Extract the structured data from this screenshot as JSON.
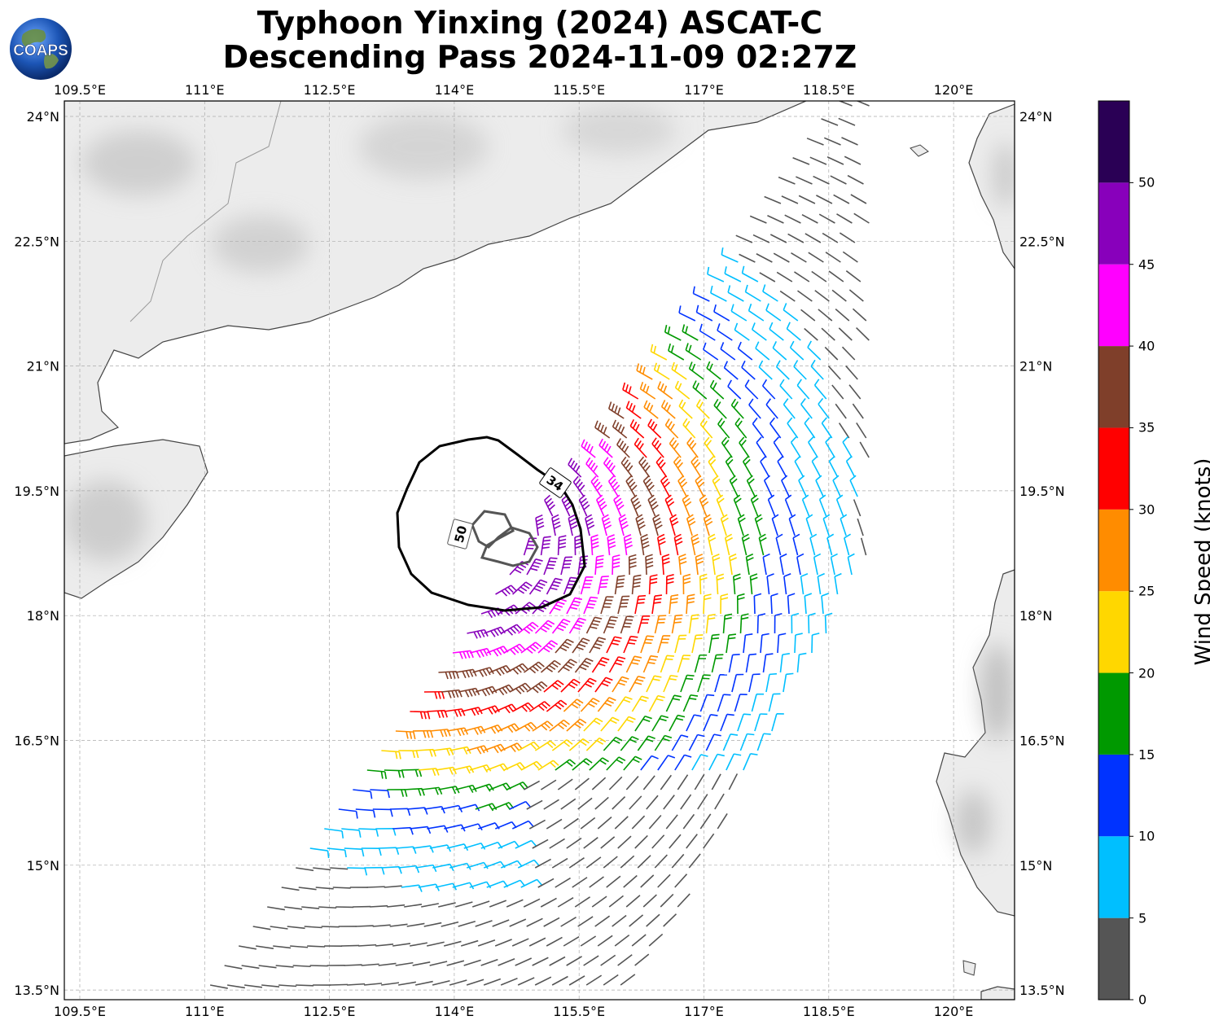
{
  "header": {
    "title_line1": "Typhoon Yinxing (2024) ASCAT-C",
    "title_line2": "Descending Pass 2024-11-09 02:27Z",
    "logo_text": "COAPS"
  },
  "map": {
    "lon_ticks": [
      "109.5°E",
      "111°E",
      "112.5°E",
      "114°E",
      "115.5°E",
      "117°E",
      "118.5°E",
      "120°E"
    ],
    "lat_ticks": [
      "24°N",
      "22.5°N",
      "21°N",
      "19.5°N",
      "18°N",
      "16.5°N",
      "15°N",
      "13.5°N"
    ],
    "lon_values": [
      109.5,
      111,
      112.5,
      114,
      115.5,
      117,
      118.5,
      120
    ],
    "lat_values": [
      24,
      22.5,
      21,
      19.5,
      18,
      16.5,
      15,
      13.5
    ],
    "contours": [
      {
        "label": "34",
        "color": "#000000"
      },
      {
        "label": "50",
        "color": "#555555"
      }
    ],
    "storm_center": {
      "lon": 114.35,
      "lat": 19.1
    },
    "gridlines": true
  },
  "colorbar": {
    "label": "Wind Speed (knots)",
    "ticks": [
      "0",
      "5",
      "10",
      "15",
      "20",
      "25",
      "30",
      "35",
      "40",
      "45",
      "50"
    ],
    "bins": [
      {
        "min": 0,
        "max": 5,
        "color": "#555555"
      },
      {
        "min": 5,
        "max": 10,
        "color": "#00bfff"
      },
      {
        "min": 10,
        "max": 15,
        "color": "#0033ff"
      },
      {
        "min": 15,
        "max": 20,
        "color": "#009900"
      },
      {
        "min": 20,
        "max": 25,
        "color": "#ffd700"
      },
      {
        "min": 25,
        "max": 30,
        "color": "#ff8c00"
      },
      {
        "min": 30,
        "max": 35,
        "color": "#ff0000"
      },
      {
        "min": 35,
        "max": 40,
        "color": "#7f3f2a"
      },
      {
        "min": 40,
        "max": 45,
        "color": "#ff00ff"
      },
      {
        "min": 45,
        "max": 50,
        "color": "#8800bb"
      },
      {
        "min": 50,
        "max": 55,
        "color": "#2a0055"
      }
    ]
  }
}
